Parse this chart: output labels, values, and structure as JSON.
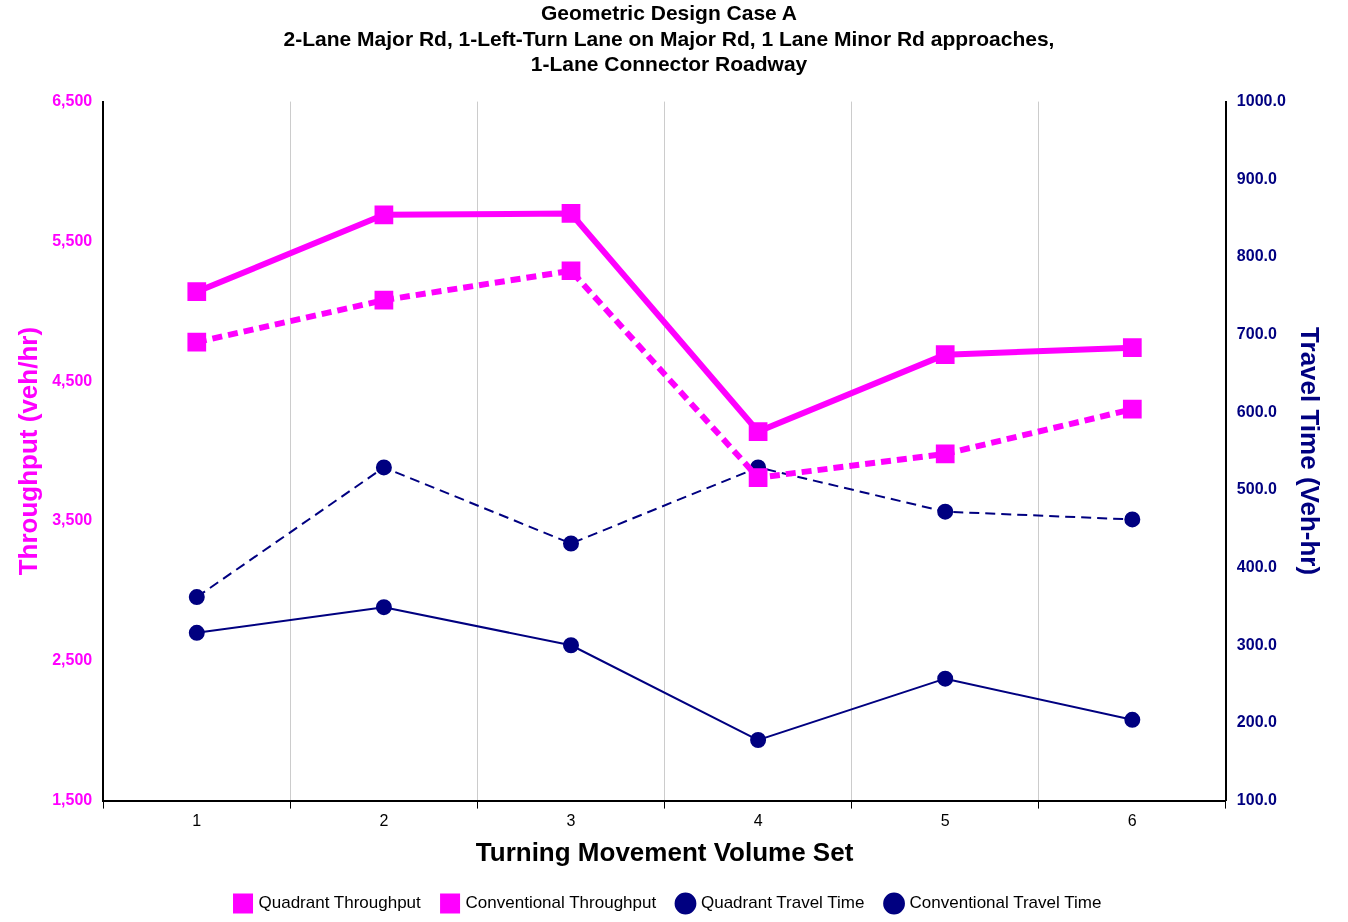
{
  "chart_data": {
    "type": "line",
    "title": "Geometric Design Case A",
    "subtitle": "2-Lane Major Rd, 1-Left-Turn Lane on Major Rd, 1 Lane Minor Rd approaches, 1-Lane Connector Roadway",
    "xlabel": "Turning Movement Volume Set",
    "ylabel": "Throughput (veh/hr)",
    "y2label": "Travel Time (Veh-hr)",
    "categories": [
      "1",
      "2",
      "3",
      "4",
      "5",
      "6"
    ],
    "series": [
      {
        "name": "Quadrant Throughput",
        "color": "#ff00ff",
        "values": [
          5140,
          5690,
          5700,
          4140,
          4690,
          4740
        ],
        "marker": "square",
        "line_style": "solid"
      },
      {
        "name": "Conventional Throughput",
        "color": "#ff00ff",
        "values": [
          4780,
          5080,
          5290,
          3810,
          3980,
          4300
        ],
        "marker": "square",
        "line_style": "dashed"
      },
      {
        "name": "Quadrant Travel Time",
        "color": "#000080",
        "values": [
          316,
          349,
          300,
          178,
          257,
          204
        ],
        "marker": "circle",
        "line_style": "solid",
        "axis": "y2"
      },
      {
        "name": "Conventional Travel Time",
        "color": "#000080",
        "values": [
          362,
          529,
          431,
          529,
          472,
          462
        ],
        "marker": "circle",
        "line_style": "dashed",
        "axis": "y2"
      }
    ],
    "ylim": [
      1500,
      6500
    ],
    "yticks": [
      {
        "value": 1500,
        "label": "1,500"
      },
      {
        "value": 2500,
        "label": "2,500"
      },
      {
        "value": 3500,
        "label": "3,500"
      },
      {
        "value": 4500,
        "label": "4,500"
      },
      {
        "value": 5500,
        "label": "5,500"
      },
      {
        "value": 6500,
        "label": "6,500"
      }
    ],
    "y2lim": [
      100,
      1000
    ],
    "y2ticks": [
      {
        "value": 100,
        "label": "100.0"
      },
      {
        "value": 200,
        "label": "200.0"
      },
      {
        "value": 300,
        "label": "300.0"
      },
      {
        "value": 400,
        "label": "400.0"
      },
      {
        "value": 500,
        "label": "500.0"
      },
      {
        "value": 600,
        "label": "600.0"
      },
      {
        "value": 700,
        "label": "700.0"
      },
      {
        "value": 800,
        "label": "800.0"
      },
      {
        "value": 900,
        "label": "900.0"
      },
      {
        "value": 1000,
        "label": "1000.0"
      }
    ],
    "grid": "x",
    "legend": "bottom"
  }
}
